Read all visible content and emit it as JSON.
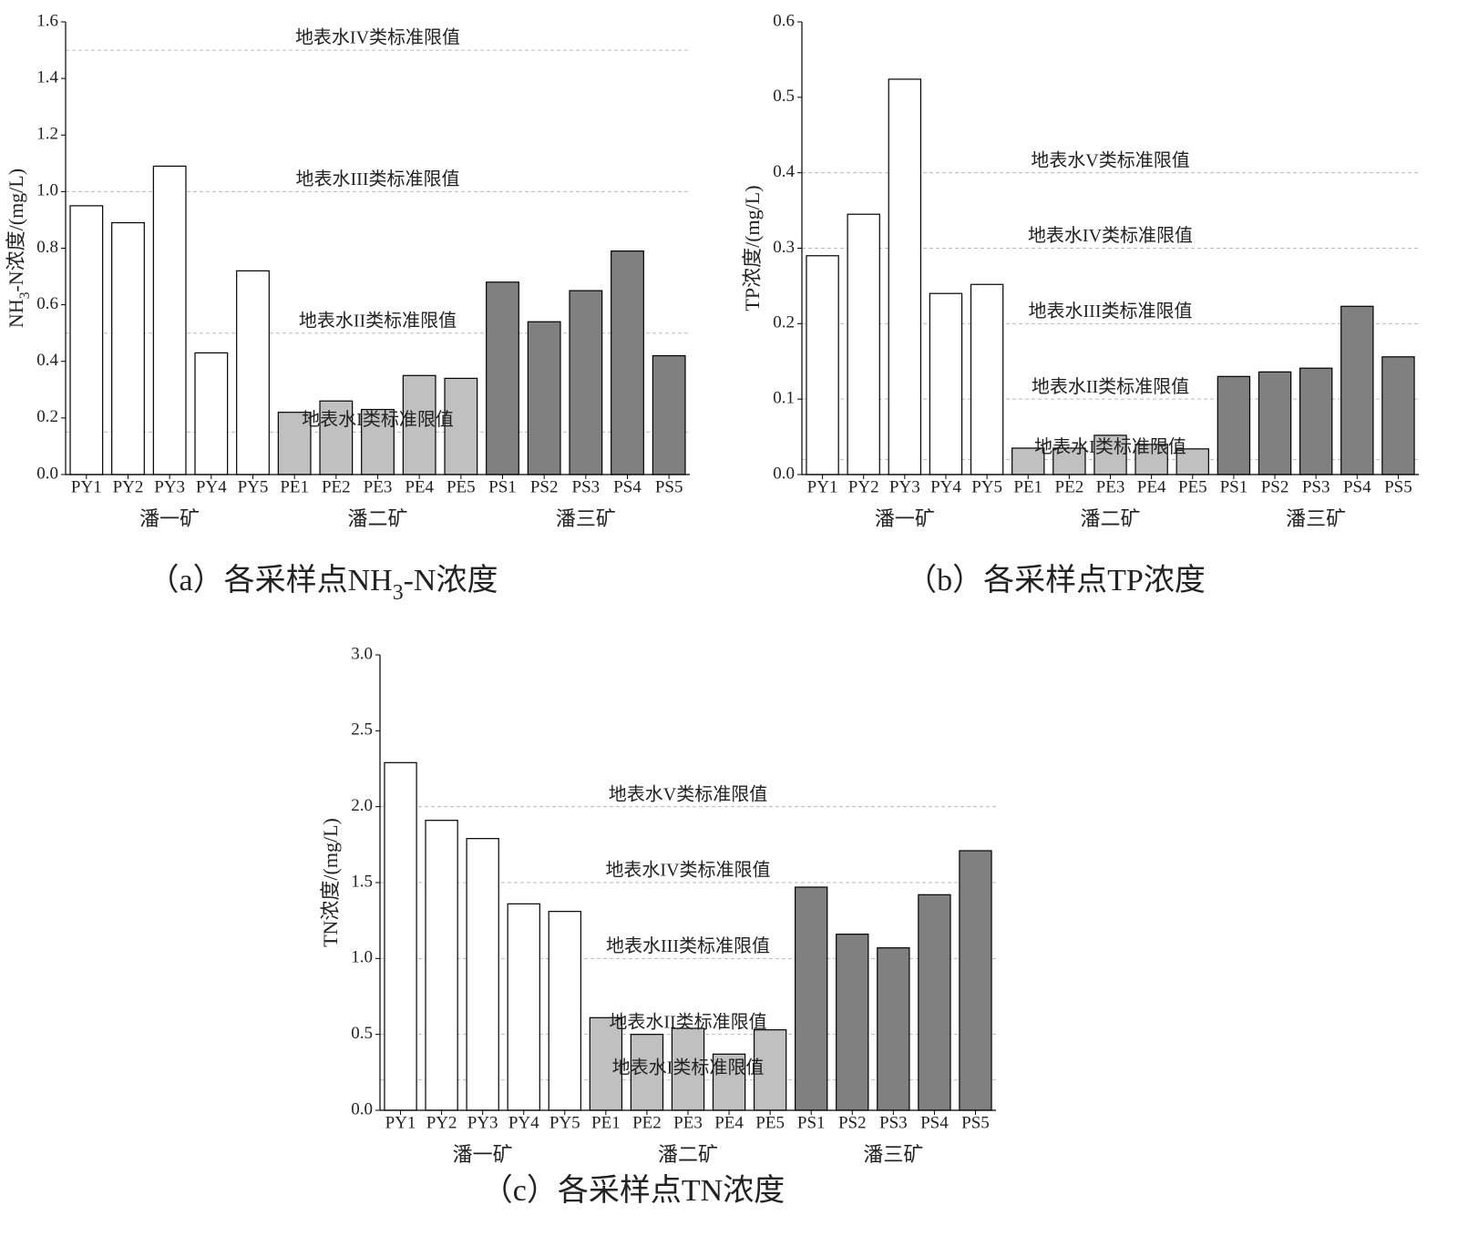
{
  "chart_data": [
    {
      "type": "bar",
      "title": "（a）各采样点NH3-N浓度",
      "ylabel": "NH3-N浓度/(mg/L)",
      "categories": [
        "PY1",
        "PY2",
        "PY3",
        "PY4",
        "PY5",
        "PE1",
        "PE2",
        "PE3",
        "PE4",
        "PE5",
        "PS1",
        "PS2",
        "PS3",
        "PS4",
        "PS5"
      ],
      "values": [
        0.95,
        0.89,
        1.09,
        0.43,
        0.72,
        0.22,
        0.26,
        0.23,
        0.35,
        0.34,
        0.68,
        0.54,
        0.65,
        0.79,
        0.42
      ],
      "groups": [
        {
          "name": "潘一矿",
          "color": "#ffffff"
        },
        {
          "name": "潘二矿",
          "color": "#c0c0c0"
        },
        {
          "name": "潘三矿",
          "color": "#808080"
        }
      ],
      "reference_lines": [
        {
          "value": 1.5,
          "label": "地表水IV类标准限值"
        },
        {
          "value": 1.0,
          "label": "地表水III类标准限值"
        },
        {
          "value": 0.5,
          "label": "地表水II类标准限值"
        },
        {
          "value": 0.15,
          "label": "地表水I类标准限值"
        }
      ],
      "ylim": [
        0,
        1.6
      ],
      "yticks": [
        {
          "value": 0,
          "label": "0.0"
        },
        0.2,
        0.4,
        0.6,
        0.8,
        {
          "value": 1,
          "label": "1.0"
        },
        1.2,
        1.4,
        1.6
      ]
    },
    {
      "type": "bar",
      "title": "（b）各采样点TP浓度",
      "ylabel": "TP浓度/(mg/L)",
      "categories": [
        "PY1",
        "PY2",
        "PY3",
        "PY4",
        "PY5",
        "PE1",
        "PE2",
        "PE3",
        "PE4",
        "PE5",
        "PS1",
        "PS2",
        "PS3",
        "PS4",
        "PS5"
      ],
      "values": [
        0.29,
        0.345,
        0.524,
        0.24,
        0.252,
        0.035,
        0.035,
        0.052,
        0.04,
        0.034,
        0.13,
        0.136,
        0.141,
        0.223,
        0.156
      ],
      "groups": [
        {
          "name": "潘一矿",
          "color": "#ffffff"
        },
        {
          "name": "潘二矿",
          "color": "#c0c0c0"
        },
        {
          "name": "潘三矿",
          "color": "#808080"
        }
      ],
      "reference_lines": [
        {
          "value": 0.4,
          "label": "地表水V类标准限值"
        },
        {
          "value": 0.3,
          "label": "地表水IV类标准限值"
        },
        {
          "value": 0.2,
          "label": "地表水III类标准限值"
        },
        {
          "value": 0.1,
          "label": "地表水II类标准限值"
        },
        {
          "value": 0.02,
          "label": "地表水I类标准限值"
        }
      ],
      "ylim": [
        0,
        0.6
      ],
      "yticks": [
        {
          "value": 0,
          "label": "0.0"
        },
        0.1,
        0.2,
        0.3,
        0.4,
        0.5,
        0.6
      ]
    },
    {
      "type": "bar",
      "title": "（c）各采样点TN浓度",
      "ylabel": "TN浓度/(mg/L)",
      "categories": [
        "PY1",
        "PY2",
        "PY3",
        "PY4",
        "PY5",
        "PE1",
        "PE2",
        "PE3",
        "PE4",
        "PE5",
        "PS1",
        "PS2",
        "PS3",
        "PS4",
        "PS5"
      ],
      "values": [
        2.29,
        1.91,
        1.79,
        1.36,
        1.31,
        0.61,
        0.5,
        0.54,
        0.37,
        0.53,
        1.47,
        1.16,
        1.07,
        1.42,
        1.71
      ],
      "groups": [
        {
          "name": "潘一矿",
          "color": "#ffffff"
        },
        {
          "name": "潘二矿",
          "color": "#c0c0c0"
        },
        {
          "name": "潘三矿",
          "color": "#808080"
        }
      ],
      "reference_lines": [
        {
          "value": 2.0,
          "label": "地表水V类标准限值"
        },
        {
          "value": 1.5,
          "label": "地表水IV类标准限值"
        },
        {
          "value": 1.0,
          "label": "地表水III类标准限值"
        },
        {
          "value": 0.5,
          "label": "地表水II类标准限值"
        },
        {
          "value": 0.2,
          "label": "地表水I类标准限值"
        }
      ],
      "ylim": [
        0,
        3.0
      ],
      "yticks": [
        {
          "value": 0,
          "label": "0.0"
        },
        0.5,
        {
          "value": 1,
          "label": "1.0"
        },
        1.5,
        {
          "value": 2,
          "label": "2.0"
        },
        2.5,
        {
          "value": 3,
          "label": "3.0"
        }
      ]
    }
  ]
}
